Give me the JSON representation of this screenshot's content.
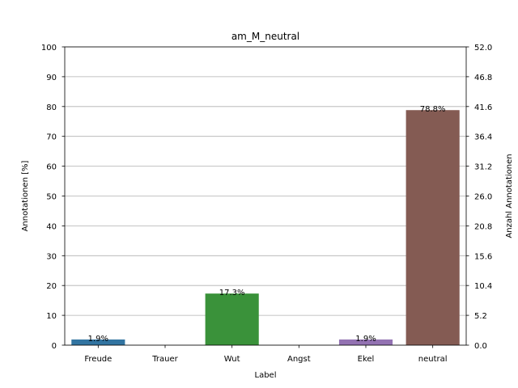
{
  "chart_data": {
    "type": "bar",
    "title": "am_M_neutral",
    "xlabel": "Label",
    "ylabel": "Annotationen [%]",
    "ylabel_right": "Anzahl Annotationen",
    "categories": [
      "Freude",
      "Trauer",
      "Wut",
      "Angst",
      "Ekel",
      "neutral"
    ],
    "values": [
      1.9,
      0,
      17.3,
      0,
      1.9,
      78.8
    ],
    "data_labels": [
      "1.9%",
      "",
      "17.3%",
      "",
      "1.9%",
      "78.8%"
    ],
    "colors": [
      "#3274a1",
      "#e1812c",
      "#3a923a",
      "#c03d3e",
      "#9372b2",
      "#845b53"
    ],
    "ylim": [
      0,
      100
    ],
    "yticks": [
      "0",
      "10",
      "20",
      "30",
      "40",
      "50",
      "60",
      "70",
      "80",
      "90",
      "100"
    ],
    "ylim_right": [
      0,
      52
    ],
    "yticks_right": [
      "0.0",
      "5.2",
      "10.4",
      "15.6",
      "20.8",
      "26.0",
      "31.2",
      "36.4",
      "41.6",
      "46.8",
      "52.0"
    ],
    "grid": true,
    "legend": "none"
  }
}
